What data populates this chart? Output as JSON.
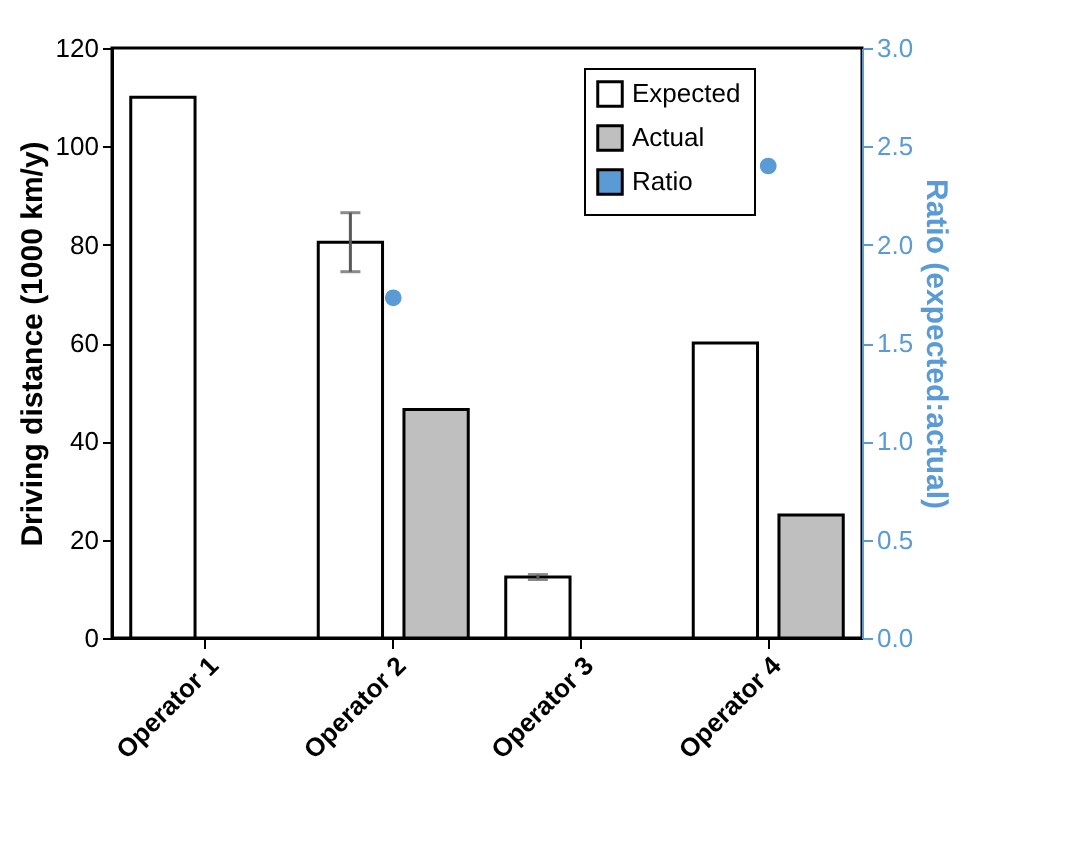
{
  "chart_data": {
    "type": "bar",
    "categories": [
      "Operator 1",
      "Operator 2",
      "Operator 3",
      "Operator 4"
    ],
    "ylabel": "Driving distance (1000 km/y)",
    "y2label": "Ratio (expected:actual)",
    "ylim": [
      0,
      120
    ],
    "yticks": [
      0,
      20,
      40,
      60,
      80,
      100,
      120
    ],
    "y2lim": [
      0,
      3
    ],
    "y2ticks": [
      {
        "value": 0,
        "label": "0.0"
      },
      {
        "value": 0.5,
        "label": "0.5"
      },
      {
        "value": 1,
        "label": "1.0"
      },
      {
        "value": 1.5,
        "label": "1.5"
      },
      {
        "value": 2,
        "label": "2.0"
      },
      {
        "value": 2.5,
        "label": "2.5"
      },
      {
        "value": 3,
        "label": "3.0"
      }
    ],
    "legend": "top right",
    "grid": false,
    "series": [
      {
        "name": "Expected",
        "color": "#ffffff",
        "values": [
          110,
          80.5,
          12.4,
          60
        ],
        "errors": [
          null,
          6,
          0.5,
          null
        ]
      },
      {
        "name": "Actual",
        "color": "#bfbfbf",
        "values": [
          null,
          46.5,
          null,
          25
        ]
      },
      {
        "name": "Ratio",
        "type": "scatter",
        "axis": "y2",
        "color": "#5b9bd5",
        "marker": "circle",
        "values": [
          null,
          1.73,
          null,
          2.4
        ]
      }
    ]
  }
}
